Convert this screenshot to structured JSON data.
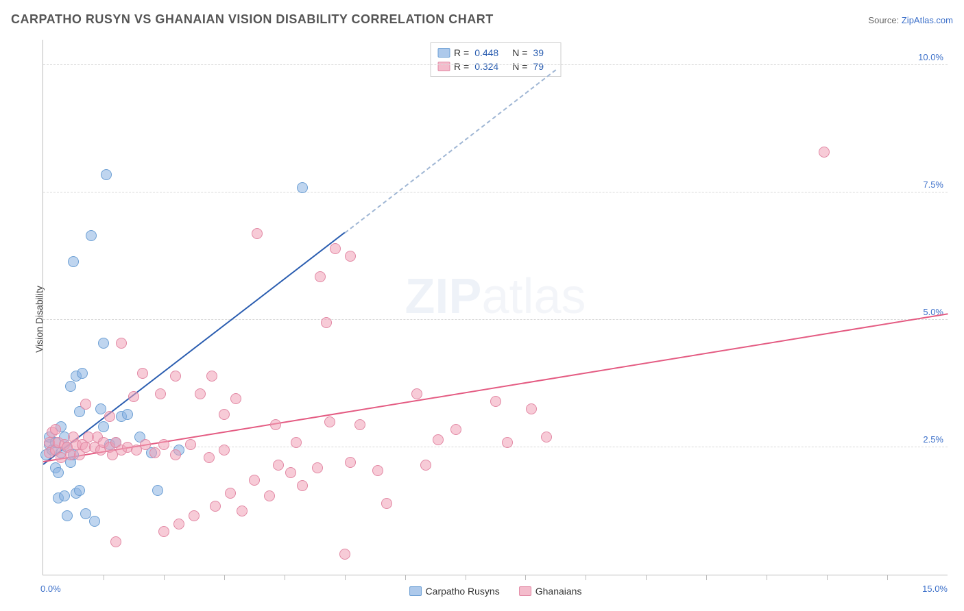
{
  "title": "CARPATHO RUSYN VS GHANAIAN VISION DISABILITY CORRELATION CHART",
  "source_label": "Source:",
  "source_name": "ZipAtlas.com",
  "ylabel": "Vision Disability",
  "watermark_bold": "ZIP",
  "watermark_light": "atlas",
  "chart": {
    "type": "scatter",
    "xlim": [
      0,
      15
    ],
    "ylim": [
      0,
      10.5
    ],
    "x_origin_label": "0.0%",
    "x_max_label": "15.0%",
    "y_ticks": [
      {
        "value": 2.5,
        "label": "2.5%"
      },
      {
        "value": 5.0,
        "label": "5.0%"
      },
      {
        "value": 7.5,
        "label": "7.5%"
      },
      {
        "value": 10.0,
        "label": "10.0%"
      }
    ],
    "x_tick_step": 1.0,
    "background_color": "#ffffff",
    "grid_color": "#d8d8d8",
    "series": [
      {
        "key": "carpatho",
        "label": "Carpatho Rusyns",
        "color_fill": "#8ab2e2",
        "color_stroke": "#6c9fd4",
        "R": "0.448",
        "N": "39",
        "trend": {
          "x1": 0.0,
          "y1": 2.15,
          "x2": 5.0,
          "y2": 6.7,
          "color": "#2a5db0",
          "dashed_extend_to_x": 8.5,
          "dashed_extend_to_y": 9.9
        },
        "points": [
          {
            "x": 0.05,
            "y": 2.35
          },
          {
            "x": 0.1,
            "y": 2.55
          },
          {
            "x": 0.1,
            "y": 2.7
          },
          {
            "x": 0.15,
            "y": 2.45
          },
          {
            "x": 0.2,
            "y": 2.6
          },
          {
            "x": 0.2,
            "y": 2.1
          },
          {
            "x": 0.25,
            "y": 2.0
          },
          {
            "x": 0.3,
            "y": 2.4
          },
          {
            "x": 0.3,
            "y": 2.9
          },
          {
            "x": 0.35,
            "y": 2.7
          },
          {
            "x": 0.4,
            "y": 2.5
          },
          {
            "x": 0.45,
            "y": 2.2
          },
          {
            "x": 0.5,
            "y": 2.35
          },
          {
            "x": 0.25,
            "y": 1.5
          },
          {
            "x": 0.35,
            "y": 1.55
          },
          {
            "x": 0.55,
            "y": 1.6
          },
          {
            "x": 0.6,
            "y": 1.65
          },
          {
            "x": 0.4,
            "y": 1.15
          },
          {
            "x": 0.7,
            "y": 1.2
          },
          {
            "x": 0.85,
            "y": 1.05
          },
          {
            "x": 0.55,
            "y": 3.9
          },
          {
            "x": 0.65,
            "y": 3.95
          },
          {
            "x": 0.45,
            "y": 3.7
          },
          {
            "x": 0.6,
            "y": 3.2
          },
          {
            "x": 0.95,
            "y": 3.25
          },
          {
            "x": 1.0,
            "y": 2.9
          },
          {
            "x": 1.3,
            "y": 3.1
          },
          {
            "x": 1.4,
            "y": 3.15
          },
          {
            "x": 1.6,
            "y": 2.7
          },
          {
            "x": 1.1,
            "y": 2.55
          },
          {
            "x": 1.2,
            "y": 2.6
          },
          {
            "x": 1.8,
            "y": 2.4
          },
          {
            "x": 1.9,
            "y": 1.65
          },
          {
            "x": 2.25,
            "y": 2.45
          },
          {
            "x": 1.0,
            "y": 4.55
          },
          {
            "x": 0.8,
            "y": 6.65
          },
          {
            "x": 0.5,
            "y": 6.15
          },
          {
            "x": 1.05,
            "y": 7.85
          },
          {
            "x": 4.3,
            "y": 7.6
          }
        ]
      },
      {
        "key": "ghanaian",
        "label": "Ghanaians",
        "color_fill": "#f0a0b6",
        "color_stroke": "#e288a4",
        "R": "0.324",
        "N": "79",
        "trend": {
          "x1": 0.0,
          "y1": 2.2,
          "x2": 15.0,
          "y2": 5.1,
          "color": "#e45b82"
        },
        "points": [
          {
            "x": 0.1,
            "y": 2.4
          },
          {
            "x": 0.1,
            "y": 2.6
          },
          {
            "x": 0.15,
            "y": 2.8
          },
          {
            "x": 0.2,
            "y": 2.85
          },
          {
            "x": 0.2,
            "y": 2.45
          },
          {
            "x": 0.25,
            "y": 2.6
          },
          {
            "x": 0.3,
            "y": 2.3
          },
          {
            "x": 0.35,
            "y": 2.55
          },
          {
            "x": 0.4,
            "y": 2.5
          },
          {
            "x": 0.45,
            "y": 2.35
          },
          {
            "x": 0.5,
            "y": 2.7
          },
          {
            "x": 0.55,
            "y": 2.55
          },
          {
            "x": 0.6,
            "y": 2.35
          },
          {
            "x": 0.65,
            "y": 2.55
          },
          {
            "x": 0.7,
            "y": 2.5
          },
          {
            "x": 0.75,
            "y": 2.7
          },
          {
            "x": 0.85,
            "y": 2.5
          },
          {
            "x": 0.9,
            "y": 2.7
          },
          {
            "x": 0.95,
            "y": 2.45
          },
          {
            "x": 1.0,
            "y": 2.6
          },
          {
            "x": 1.1,
            "y": 2.5
          },
          {
            "x": 1.15,
            "y": 2.35
          },
          {
            "x": 1.2,
            "y": 2.6
          },
          {
            "x": 1.3,
            "y": 2.45
          },
          {
            "x": 1.4,
            "y": 2.5
          },
          {
            "x": 1.55,
            "y": 2.45
          },
          {
            "x": 1.7,
            "y": 2.55
          },
          {
            "x": 1.85,
            "y": 2.4
          },
          {
            "x": 2.0,
            "y": 2.55
          },
          {
            "x": 2.2,
            "y": 2.35
          },
          {
            "x": 2.45,
            "y": 2.55
          },
          {
            "x": 2.75,
            "y": 2.3
          },
          {
            "x": 3.0,
            "y": 2.45
          },
          {
            "x": 0.7,
            "y": 3.35
          },
          {
            "x": 1.1,
            "y": 3.1
          },
          {
            "x": 1.3,
            "y": 4.55
          },
          {
            "x": 1.5,
            "y": 3.5
          },
          {
            "x": 1.65,
            "y": 3.95
          },
          {
            "x": 1.95,
            "y": 3.55
          },
          {
            "x": 2.2,
            "y": 3.9
          },
          {
            "x": 2.6,
            "y": 3.55
          },
          {
            "x": 2.8,
            "y": 3.9
          },
          {
            "x": 3.0,
            "y": 3.15
          },
          {
            "x": 3.2,
            "y": 3.45
          },
          {
            "x": 3.85,
            "y": 2.95
          },
          {
            "x": 4.2,
            "y": 2.6
          },
          {
            "x": 4.55,
            "y": 2.1
          },
          {
            "x": 4.75,
            "y": 3.0
          },
          {
            "x": 5.1,
            "y": 2.2
          },
          {
            "x": 5.25,
            "y": 2.95
          },
          {
            "x": 5.55,
            "y": 2.05
          },
          {
            "x": 5.7,
            "y": 1.4
          },
          {
            "x": 4.3,
            "y": 1.75
          },
          {
            "x": 3.75,
            "y": 1.55
          },
          {
            "x": 3.5,
            "y": 1.85
          },
          {
            "x": 3.3,
            "y": 1.25
          },
          {
            "x": 3.1,
            "y": 1.6
          },
          {
            "x": 2.85,
            "y": 1.35
          },
          {
            "x": 2.5,
            "y": 1.15
          },
          {
            "x": 2.25,
            "y": 1.0
          },
          {
            "x": 2.0,
            "y": 0.85
          },
          {
            "x": 1.2,
            "y": 0.65
          },
          {
            "x": 5.0,
            "y": 0.4
          },
          {
            "x": 6.2,
            "y": 3.55
          },
          {
            "x": 6.35,
            "y": 2.15
          },
          {
            "x": 6.55,
            "y": 2.65
          },
          {
            "x": 6.85,
            "y": 2.85
          },
          {
            "x": 7.5,
            "y": 3.4
          },
          {
            "x": 7.7,
            "y": 2.6
          },
          {
            "x": 8.1,
            "y": 3.25
          },
          {
            "x": 8.35,
            "y": 2.7
          },
          {
            "x": 3.55,
            "y": 6.7
          },
          {
            "x": 4.6,
            "y": 5.85
          },
          {
            "x": 4.7,
            "y": 4.95
          },
          {
            "x": 4.85,
            "y": 6.4
          },
          {
            "x": 5.1,
            "y": 6.25
          },
          {
            "x": 12.95,
            "y": 8.3
          },
          {
            "x": 3.9,
            "y": 2.15
          },
          {
            "x": 4.1,
            "y": 2.0
          }
        ]
      }
    ]
  }
}
